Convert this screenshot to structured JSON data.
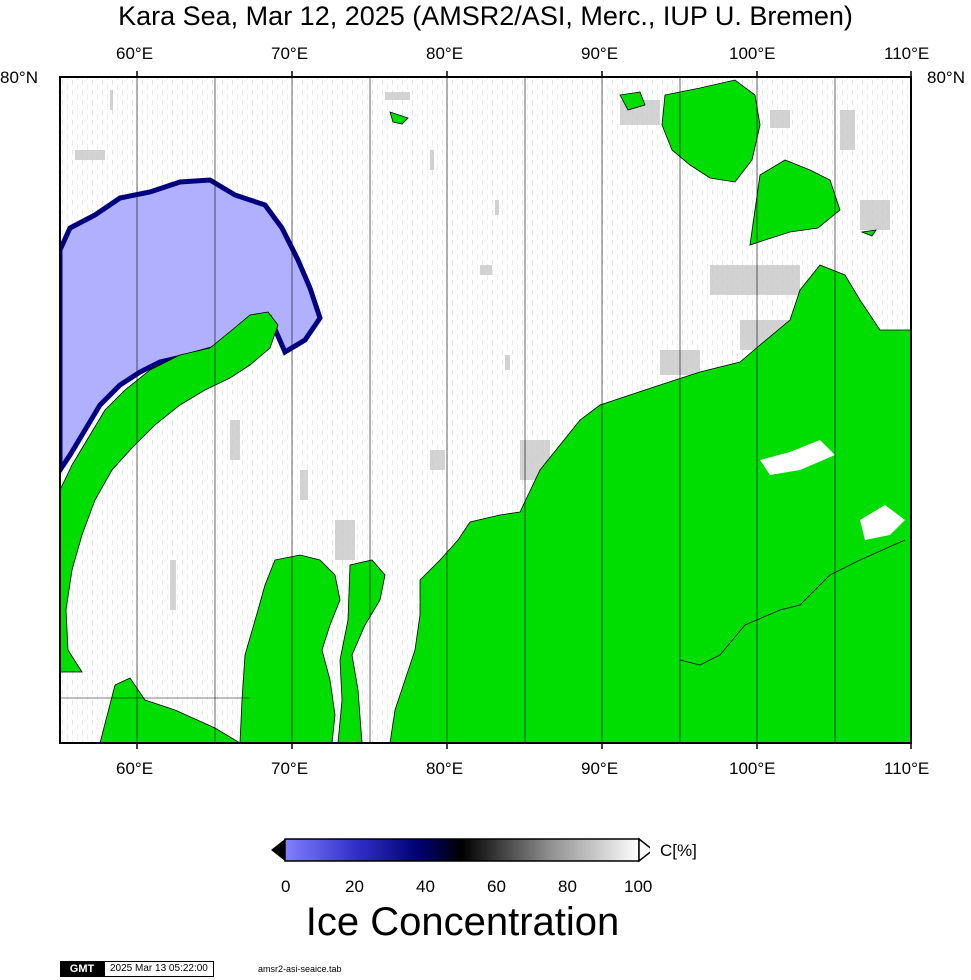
{
  "title": "Kara Sea, Mar 12, 2025 (AMSR2/ASI, Merc., IUP U. Bremen)",
  "map": {
    "lon_labels": [
      "60°E",
      "70°E",
      "80°E",
      "90°E",
      "100°E",
      "110°E"
    ],
    "lat_label": "80°N",
    "lon_range": [
      55,
      110
    ],
    "colors": {
      "land": "#00dd00",
      "open_water": "#b0b0ff",
      "ice": "#ffffff",
      "grid": "#000000"
    }
  },
  "colorbar": {
    "tick_labels": [
      "0",
      "20",
      "40",
      "60",
      "80",
      "100"
    ],
    "unit": "C[%]",
    "title": "Ice Concentration"
  },
  "footer": {
    "logo": "GMT",
    "timestamp": "2025 Mar 13 05:22:00",
    "filename": "amsr2-asi-seaice.tab"
  }
}
